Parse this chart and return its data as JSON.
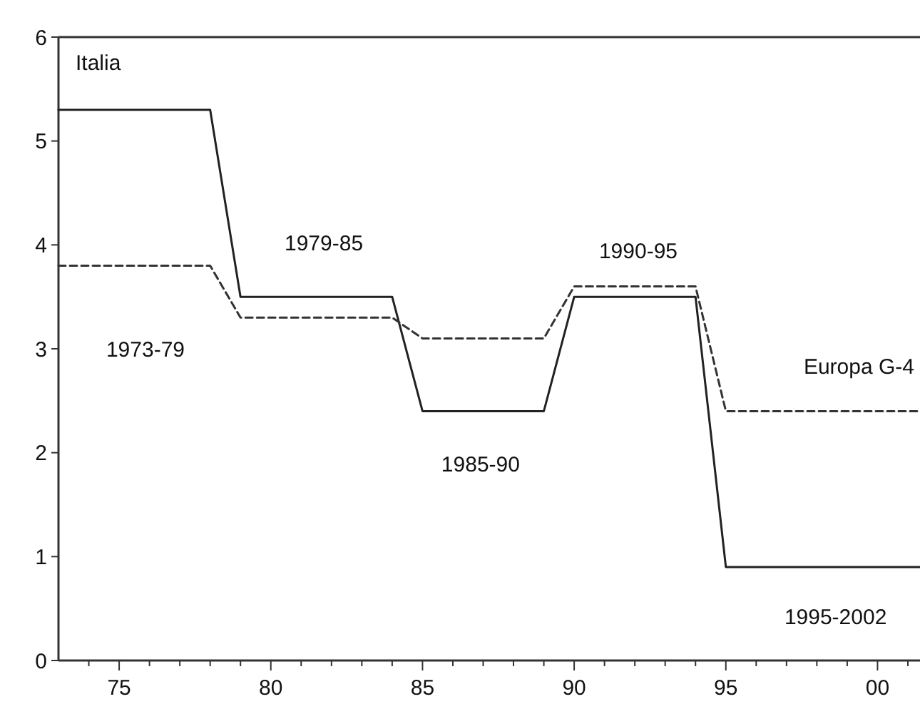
{
  "chart_data": {
    "type": "line",
    "x": [
      1973,
      1978,
      1979,
      1984,
      1985,
      1989,
      1990,
      1994,
      1995,
      2001.4
    ],
    "series": [
      {
        "name": "Italia",
        "color": "#222222",
        "line_style": "solid",
        "values": [
          5.3,
          5.3,
          3.5,
          3.5,
          2.4,
          2.4,
          3.5,
          3.5,
          0.9,
          0.9
        ]
      },
      {
        "name": "Europa G-4",
        "color": "#333333",
        "line_style": "dashed",
        "values": [
          3.8,
          3.8,
          3.3,
          3.3,
          3.1,
          3.1,
          3.6,
          3.6,
          2.4,
          2.4
        ]
      }
    ],
    "xlim": [
      1973,
      2001.4
    ],
    "xticks": [
      {
        "value": 1974,
        "label": null
      },
      {
        "value": 1975,
        "label": "75"
      },
      {
        "value": 1976,
        "label": null
      },
      {
        "value": 1977,
        "label": null
      },
      {
        "value": 1978,
        "label": null
      },
      {
        "value": 1979,
        "label": null
      },
      {
        "value": 1980,
        "label": "80"
      },
      {
        "value": 1981,
        "label": null
      },
      {
        "value": 1982,
        "label": null
      },
      {
        "value": 1983,
        "label": null
      },
      {
        "value": 1984,
        "label": null
      },
      {
        "value": 1985,
        "label": "85"
      },
      {
        "value": 1986,
        "label": null
      },
      {
        "value": 1987,
        "label": null
      },
      {
        "value": 1988,
        "label": null
      },
      {
        "value": 1989,
        "label": null
      },
      {
        "value": 1990,
        "label": "90"
      },
      {
        "value": 1991,
        "label": null
      },
      {
        "value": 1992,
        "label": null
      },
      {
        "value": 1993,
        "label": null
      },
      {
        "value": 1994,
        "label": null
      },
      {
        "value": 1995,
        "label": "95"
      },
      {
        "value": 1996,
        "label": null
      },
      {
        "value": 1997,
        "label": null
      },
      {
        "value": 1998,
        "label": null
      },
      {
        "value": 1999,
        "label": null
      },
      {
        "value": 2000,
        "label": "00"
      },
      {
        "value": 2001,
        "label": null
      }
    ],
    "ylim": [
      0,
      6
    ],
    "yticks": [
      0,
      1,
      2,
      3,
      4,
      5,
      6
    ],
    "grid": false,
    "marker": "none",
    "annotations": [
      "1973-79",
      "1979-85",
      "1985-90",
      "1990-95",
      "1995-2002"
    ]
  }
}
